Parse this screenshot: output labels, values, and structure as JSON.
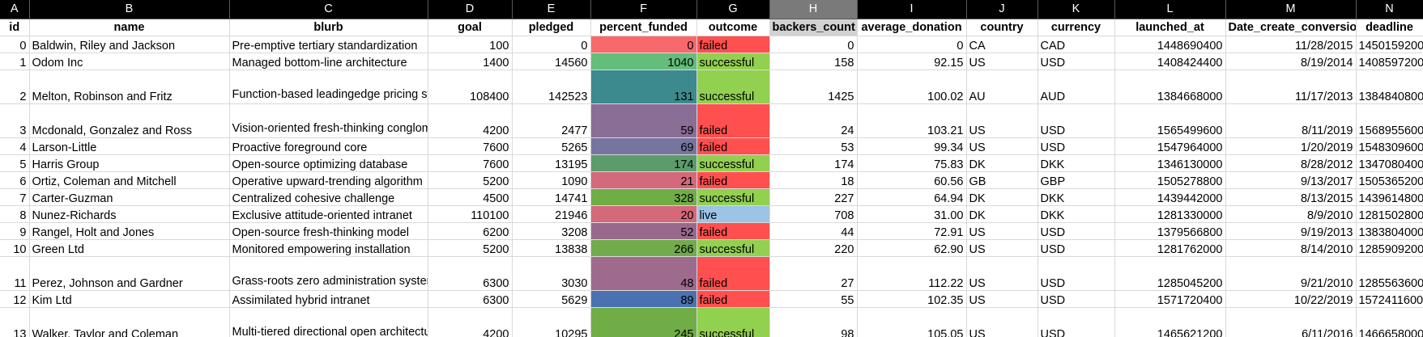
{
  "columns": {
    "letters": [
      "A",
      "B",
      "C",
      "D",
      "E",
      "F",
      "G",
      "H",
      "I",
      "J",
      "K",
      "L",
      "M",
      "N"
    ],
    "selected": "H",
    "fields": [
      "id",
      "name",
      "blurb",
      "goal",
      "pledged",
      "percent_funded",
      "outcome",
      "backers_count",
      "average_donation",
      "country",
      "currency",
      "launched_at",
      "Date_create_conversion",
      "deadline"
    ]
  },
  "colors": {
    "failed": "#ff4f4f",
    "successful": "#92d050",
    "live": "#9dc3e6"
  },
  "rows": [
    {
      "id": "0",
      "name": "Baldwin, Riley and Jackson",
      "blurb": "Pre-emptive tertiary standardization",
      "goal": "100",
      "pledged": "0",
      "percent_funded": "0",
      "pf_color": "#f8696b",
      "outcome": "failed",
      "backers_count": "0",
      "average_donation": "0",
      "country": "CA",
      "currency": "CAD",
      "launched_at": "1448690400",
      "date_conv": "11/28/2015",
      "deadline": "1450159200"
    },
    {
      "id": "1",
      "name": "Odom Inc",
      "blurb": "Managed bottom-line architecture",
      "goal": "1400",
      "pledged": "14560",
      "percent_funded": "1040",
      "pf_color": "#63be7b",
      "outcome": "successful",
      "backers_count": "158",
      "average_donation": "92.15",
      "country": "US",
      "currency": "USD",
      "launched_at": "1408424400",
      "date_conv": "8/19/2014",
      "deadline": "1408597200"
    },
    {
      "id": "2",
      "name": "Melton, Robinson and Fritz",
      "blurb": "Function-based leadingedge pricing structure",
      "goal": "108400",
      "pledged": "142523",
      "percent_funded": "131",
      "pf_color": "#3c8a8e",
      "outcome": "successful",
      "backers_count": "1425",
      "average_donation": "100.02",
      "country": "AU",
      "currency": "AUD",
      "launched_at": "1384668000",
      "date_conv": "11/17/2013",
      "deadline": "1384840800"
    },
    {
      "id": "3",
      "name": "Mcdonald, Gonzalez and Ross",
      "blurb": "Vision-oriented fresh-thinking conglomeration",
      "goal": "4200",
      "pledged": "2477",
      "percent_funded": "59",
      "pf_color": "#8a6e95",
      "outcome": "failed",
      "backers_count": "24",
      "average_donation": "103.21",
      "country": "US",
      "currency": "USD",
      "launched_at": "1565499600",
      "date_conv": "8/11/2019",
      "deadline": "1568955600"
    },
    {
      "id": "4",
      "name": "Larson-Little",
      "blurb": "Proactive foreground core",
      "goal": "7600",
      "pledged": "5265",
      "percent_funded": "69",
      "pf_color": "#76759e",
      "outcome": "failed",
      "backers_count": "53",
      "average_donation": "99.34",
      "country": "US",
      "currency": "USD",
      "launched_at": "1547964000",
      "date_conv": "1/20/2019",
      "deadline": "1548309600"
    },
    {
      "id": "5",
      "name": "Harris Group",
      "blurb": "Open-source optimizing database",
      "goal": "7600",
      "pledged": "13195",
      "percent_funded": "174",
      "pf_color": "#5c9b6b",
      "outcome": "successful",
      "backers_count": "174",
      "average_donation": "75.83",
      "country": "DK",
      "currency": "DKK",
      "launched_at": "1346130000",
      "date_conv": "8/28/2012",
      "deadline": "1347080400"
    },
    {
      "id": "6",
      "name": "Ortiz, Coleman and Mitchell",
      "blurb": "Operative upward-trending algorithm",
      "goal": "5200",
      "pledged": "1090",
      "percent_funded": "21",
      "pf_color": "#d3697a",
      "outcome": "failed",
      "backers_count": "18",
      "average_donation": "60.56",
      "country": "GB",
      "currency": "GBP",
      "launched_at": "1505278800",
      "date_conv": "9/13/2017",
      "deadline": "1505365200"
    },
    {
      "id": "7",
      "name": "Carter-Guzman",
      "blurb": "Centralized cohesive challenge",
      "goal": "4500",
      "pledged": "14741",
      "percent_funded": "328",
      "pf_color": "#70ad47",
      "outcome": "successful",
      "backers_count": "227",
      "average_donation": "64.94",
      "country": "DK",
      "currency": "DKK",
      "launched_at": "1439442000",
      "date_conv": "8/13/2015",
      "deadline": "1439614800"
    },
    {
      "id": "8",
      "name": "Nunez-Richards",
      "blurb": "Exclusive attitude-oriented intranet",
      "goal": "110100",
      "pledged": "21946",
      "percent_funded": "20",
      "pf_color": "#d4697a",
      "outcome": "live",
      "backers_count": "708",
      "average_donation": "31.00",
      "country": "DK",
      "currency": "DKK",
      "launched_at": "1281330000",
      "date_conv": "8/9/2010",
      "deadline": "1281502800"
    },
    {
      "id": "9",
      "name": "Rangel, Holt and Jones",
      "blurb": "Open-source fresh-thinking model",
      "goal": "6200",
      "pledged": "3208",
      "percent_funded": "52",
      "pf_color": "#99698d",
      "outcome": "failed",
      "backers_count": "44",
      "average_donation": "72.91",
      "country": "US",
      "currency": "USD",
      "launched_at": "1379566800",
      "date_conv": "9/19/2013",
      "deadline": "1383804000"
    },
    {
      "id": "10",
      "name": "Green Ltd",
      "blurb": "Monitored empowering installation",
      "goal": "5200",
      "pledged": "13838",
      "percent_funded": "266",
      "pf_color": "#72ab4c",
      "outcome": "successful",
      "backers_count": "220",
      "average_donation": "62.90",
      "country": "US",
      "currency": "USD",
      "launched_at": "1281762000",
      "date_conv": "8/14/2010",
      "deadline": "1285909200"
    },
    {
      "id": "11",
      "name": "Perez, Johnson and Gardner",
      "blurb": "Grass-roots zero administration system engine",
      "goal": "6300",
      "pledged": "3030",
      "percent_funded": "48",
      "pf_color": "#9e6b8e",
      "outcome": "failed",
      "backers_count": "27",
      "average_donation": "112.22",
      "country": "US",
      "currency": "USD",
      "launched_at": "1285045200",
      "date_conv": "9/21/2010",
      "deadline": "1285563600"
    },
    {
      "id": "12",
      "name": "Kim Ltd",
      "blurb": "Assimilated hybrid intranet",
      "goal": "6300",
      "pledged": "5629",
      "percent_funded": "89",
      "pf_color": "#4a72b0",
      "outcome": "failed",
      "backers_count": "55",
      "average_donation": "102.35",
      "country": "US",
      "currency": "USD",
      "launched_at": "1571720400",
      "date_conv": "10/22/2019",
      "deadline": "1572411600"
    },
    {
      "id": "13",
      "name": "Walker, Taylor and Coleman",
      "blurb": "Multi-tiered directional open architecture",
      "goal": "4200",
      "pledged": "10295",
      "percent_funded": "245",
      "pf_color": "#70ad47",
      "outcome": "successful",
      "backers_count": "98",
      "average_donation": "105.05",
      "country": "US",
      "currency": "USD",
      "launched_at": "1465621200",
      "date_conv": "6/11/2016",
      "deadline": "1466658000"
    }
  ]
}
